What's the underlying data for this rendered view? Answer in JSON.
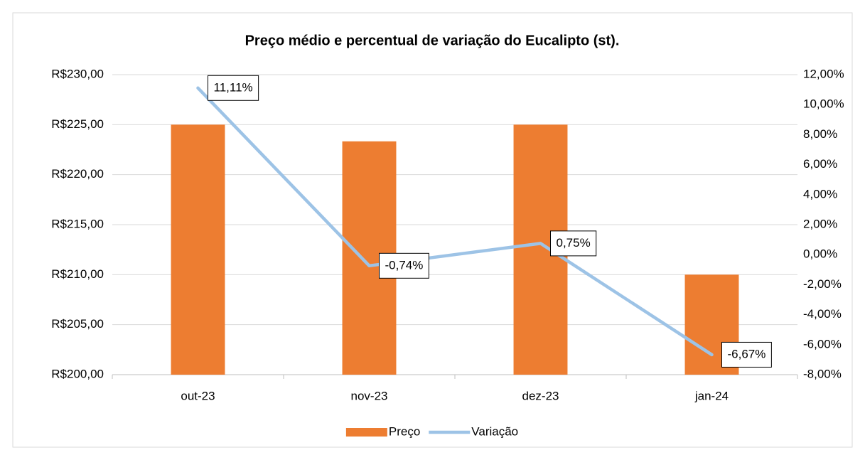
{
  "chart_data": {
    "type": "bar",
    "title": "Preço médio e percentual de variação do Eucalipto (st).",
    "categories": [
      "out-23",
      "nov-23",
      "dez-23",
      "jan-24"
    ],
    "series": [
      {
        "name": "Preço",
        "type": "bar",
        "color": "#ed7d31",
        "values": [
          225,
          223.33,
          225,
          210
        ]
      },
      {
        "name": "Variação",
        "type": "line",
        "axis": "y2",
        "color": "#9dc3e6",
        "values": [
          11.11,
          -0.74,
          0.75,
          -6.67
        ],
        "value_labels": [
          "11,11%",
          "-0,74%",
          "0,75%",
          "-6,67%"
        ]
      }
    ],
    "ylim": [
      200,
      230
    ],
    "yticks": [
      {
        "value": 200,
        "label": "R$200,00"
      },
      {
        "value": 205,
        "label": "R$205,00"
      },
      {
        "value": 210,
        "label": "R$210,00"
      },
      {
        "value": 215,
        "label": "R$215,00"
      },
      {
        "value": 220,
        "label": "R$220,00"
      },
      {
        "value": 225,
        "label": "R$225,00"
      },
      {
        "value": 230,
        "label": "R$230,00"
      }
    ],
    "y2lim": [
      -8,
      12
    ],
    "y2ticks": [
      {
        "value": -8,
        "label": "-8,00%"
      },
      {
        "value": -6,
        "label": "-6,00%"
      },
      {
        "value": -4,
        "label": "-4,00%"
      },
      {
        "value": -2,
        "label": "-2,00%"
      },
      {
        "value": 0,
        "label": "0,00%"
      },
      {
        "value": 2,
        "label": "2,00%"
      },
      {
        "value": 4,
        "label": "4,00%"
      },
      {
        "value": 6,
        "label": "6,00%"
      },
      {
        "value": 8,
        "label": "8,00%"
      },
      {
        "value": 10,
        "label": "10,00%"
      },
      {
        "value": 12,
        "label": "12,00%"
      }
    ],
    "grid": true,
    "legend": "bottom"
  }
}
